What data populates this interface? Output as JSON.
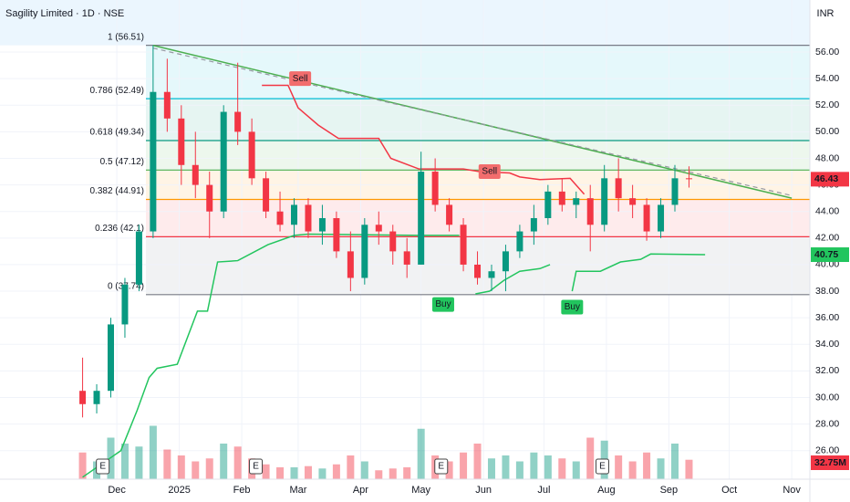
{
  "chart_data": {
    "type": "candlestick",
    "title": "Sagility Limited · 1D · NSE",
    "currency": "INR",
    "xlim": [
      -58,
      344
    ],
    "xticks": [
      {
        "value": 0,
        "label": "Dec"
      },
      {
        "value": 31,
        "label": "2025"
      },
      {
        "value": 62,
        "label": "Feb"
      },
      {
        "value": 90,
        "label": "Mar"
      },
      {
        "value": 121,
        "label": "Apr"
      },
      {
        "value": 151,
        "label": "May"
      },
      {
        "value": 182,
        "label": "Jun"
      },
      {
        "value": 212,
        "label": "Jul"
      },
      {
        "value": 243,
        "label": "Aug"
      },
      {
        "value": 274,
        "label": "Sep"
      },
      {
        "value": 304,
        "label": "Oct"
      },
      {
        "value": 335,
        "label": "Nov"
      }
    ],
    "ylim": [
      23.85,
      59.92
    ],
    "yticks": [
      {
        "value": 26,
        "label": "26.00"
      },
      {
        "value": 28,
        "label": "28.00"
      },
      {
        "value": 30,
        "label": "30.00"
      },
      {
        "value": 32,
        "label": "32.00"
      },
      {
        "value": 34,
        "label": "34.00"
      },
      {
        "value": 36,
        "label": "36.00"
      },
      {
        "value": 38,
        "label": "38.00"
      },
      {
        "value": 40,
        "label": "40.00"
      },
      {
        "value": 42,
        "label": "42.00"
      },
      {
        "value": 44,
        "label": "44.00"
      },
      {
        "value": 46,
        "label": "46.00"
      },
      {
        "value": 48,
        "label": "48.00"
      },
      {
        "value": 50,
        "label": "50.00"
      },
      {
        "value": 52,
        "label": "52.00"
      },
      {
        "value": 54,
        "label": "54.00"
      },
      {
        "value": 56,
        "label": "56.00"
      }
    ],
    "up_color": "#089981",
    "down_color": "#f23645",
    "candles": {
      "x": [
        -17,
        -10,
        -3,
        4,
        11,
        18,
        25,
        32,
        39,
        46,
        53,
        60,
        67,
        74,
        81,
        88,
        95,
        102,
        109,
        116,
        123,
        130,
        137,
        144,
        151,
        158,
        165,
        172,
        179,
        186,
        193,
        200,
        207,
        214,
        221,
        228,
        235,
        242,
        249,
        256,
        263,
        270,
        277,
        284
      ],
      "open": [
        30.5,
        29.5,
        30.5,
        35.5,
        38.5,
        42.5,
        53,
        51,
        47.5,
        46,
        44,
        51.5,
        50,
        46.5,
        44,
        43,
        44.5,
        42.5,
        43.5,
        41,
        39,
        43,
        42.5,
        41,
        40,
        47,
        44.5,
        43,
        40,
        39,
        39.5,
        41,
        42.5,
        43.5,
        45.5,
        44.5,
        45,
        43,
        46.5,
        45,
        44.5,
        42.5,
        44.5,
        46.5
      ],
      "high": [
        33,
        31,
        36,
        39,
        43,
        56.5,
        55.5,
        52,
        50,
        47,
        52,
        55.2,
        51,
        47,
        45.5,
        45,
        45,
        44.5,
        44,
        42.5,
        43.5,
        44,
        43,
        42,
        48.5,
        48,
        45,
        43.5,
        41,
        40,
        41.5,
        43,
        44.5,
        46,
        46.5,
        45.5,
        46,
        47.5,
        48,
        46,
        45,
        45,
        47.5,
        47.4
      ],
      "low": [
        28.5,
        28.8,
        30,
        34.5,
        38,
        42,
        50,
        46,
        45,
        42,
        43.5,
        49,
        46,
        43.5,
        42.5,
        42,
        42,
        41.5,
        40.5,
        38,
        38.5,
        41.5,
        40,
        39,
        40,
        44,
        42.5,
        39.5,
        38.5,
        38,
        38,
        40.5,
        41.5,
        43,
        44,
        43.5,
        41,
        42.5,
        44,
        43.5,
        41.8,
        42,
        44,
        45.8
      ],
      "close": [
        29.5,
        30.5,
        35.5,
        38.5,
        42.5,
        53,
        51,
        47.5,
        46,
        44,
        51.5,
        50,
        46.5,
        44,
        43,
        44.5,
        42.5,
        43.5,
        41,
        39,
        43,
        42.5,
        41,
        40,
        47,
        44.5,
        43,
        40,
        39,
        39.5,
        41,
        42.5,
        43.5,
        45.5,
        44.5,
        45,
        43,
        46.5,
        45,
        44.5,
        42.5,
        44.5,
        46.5,
        46.43
      ]
    },
    "volume": [
      45,
      30,
      70,
      60,
      55,
      90,
      50,
      40,
      30,
      35,
      60,
      55,
      35,
      25,
      20,
      20,
      22,
      18,
      25,
      40,
      30,
      15,
      18,
      20,
      85,
      40,
      30,
      45,
      60,
      35,
      40,
      30,
      45,
      40,
      35,
      30,
      70,
      65,
      40,
      30,
      45,
      35,
      60,
      32.75
    ],
    "volume_ylim": [
      0,
      200
    ],
    "volume_last_label": "32.75M",
    "fib_levels": [
      {
        "label": "1 (56.51)",
        "value": 56.51,
        "color": "#787b86"
      },
      {
        "label": "0.786 (52.49)",
        "value": 52.49,
        "color": "#00bcd4"
      },
      {
        "label": "0.618 (49.34)",
        "value": 49.34,
        "color": "#089981"
      },
      {
        "label": "0.5 (47.12)",
        "value": 47.12,
        "color": "#4caf50"
      },
      {
        "label": "0.382 (44.91)",
        "value": 44.91,
        "color": "#ff9800"
      },
      {
        "label": "0.236 (42.1)",
        "value": 42.1,
        "color": "#f23645"
      },
      {
        "label": "0 (37.74)",
        "value": 37.74,
        "color": "#787b86"
      }
    ],
    "trendline": {
      "x": [
        18,
        335
      ],
      "values": [
        56.5,
        45.0
      ],
      "color": "#4caf50"
    },
    "dashed_trendline": {
      "x": [
        18,
        335
      ],
      "values": [
        56.3,
        45.2
      ],
      "color": "#9598a1"
    },
    "sell_stop": {
      "color": "#f23645",
      "x": [
        72,
        85,
        90,
        100,
        110,
        130,
        136,
        150,
        172,
        180,
        195,
        200,
        210,
        225,
        232
      ],
      "values": [
        53.5,
        53.5,
        51.8,
        50.5,
        49.5,
        49.5,
        48,
        47.2,
        47.2,
        47,
        46.9,
        46.6,
        46.4,
        46.5,
        45.3
      ]
    },
    "buy_stop": {
      "color": "#22c55e",
      "x": [
        -17,
        2,
        10,
        16,
        20,
        30,
        40,
        45,
        50,
        60,
        75,
        88,
        95,
        150,
        160,
        170,
        null,
        178,
        185,
        192,
        200,
        210,
        215,
        null,
        226,
        228,
        240,
        250,
        260,
        265,
        292
      ],
      "values": [
        24,
        26,
        29,
        31.5,
        32.2,
        32.5,
        36.5,
        36.5,
        40.2,
        40.3,
        41.5,
        42.2,
        42.3,
        42.2,
        42.2,
        42.2,
        null,
        37.8,
        38,
        38.8,
        39.5,
        39.7,
        40,
        null,
        38,
        39.5,
        39.5,
        40.2,
        40.4,
        40.8,
        40.75
      ]
    },
    "signals": [
      {
        "label": "Sell",
        "x": 91,
        "value": 54.0
      },
      {
        "label": "Sell",
        "x": 185,
        "value": 47.0
      },
      {
        "label": "Buy",
        "x": 162,
        "value": 37.0
      },
      {
        "label": "Buy",
        "x": 226,
        "value": 36.8
      }
    ],
    "events": [
      {
        "label": "E",
        "x": -7
      },
      {
        "label": "E",
        "x": 69
      },
      {
        "label": "E",
        "x": 161
      },
      {
        "label": "E",
        "x": 241
      }
    ]
  }
}
